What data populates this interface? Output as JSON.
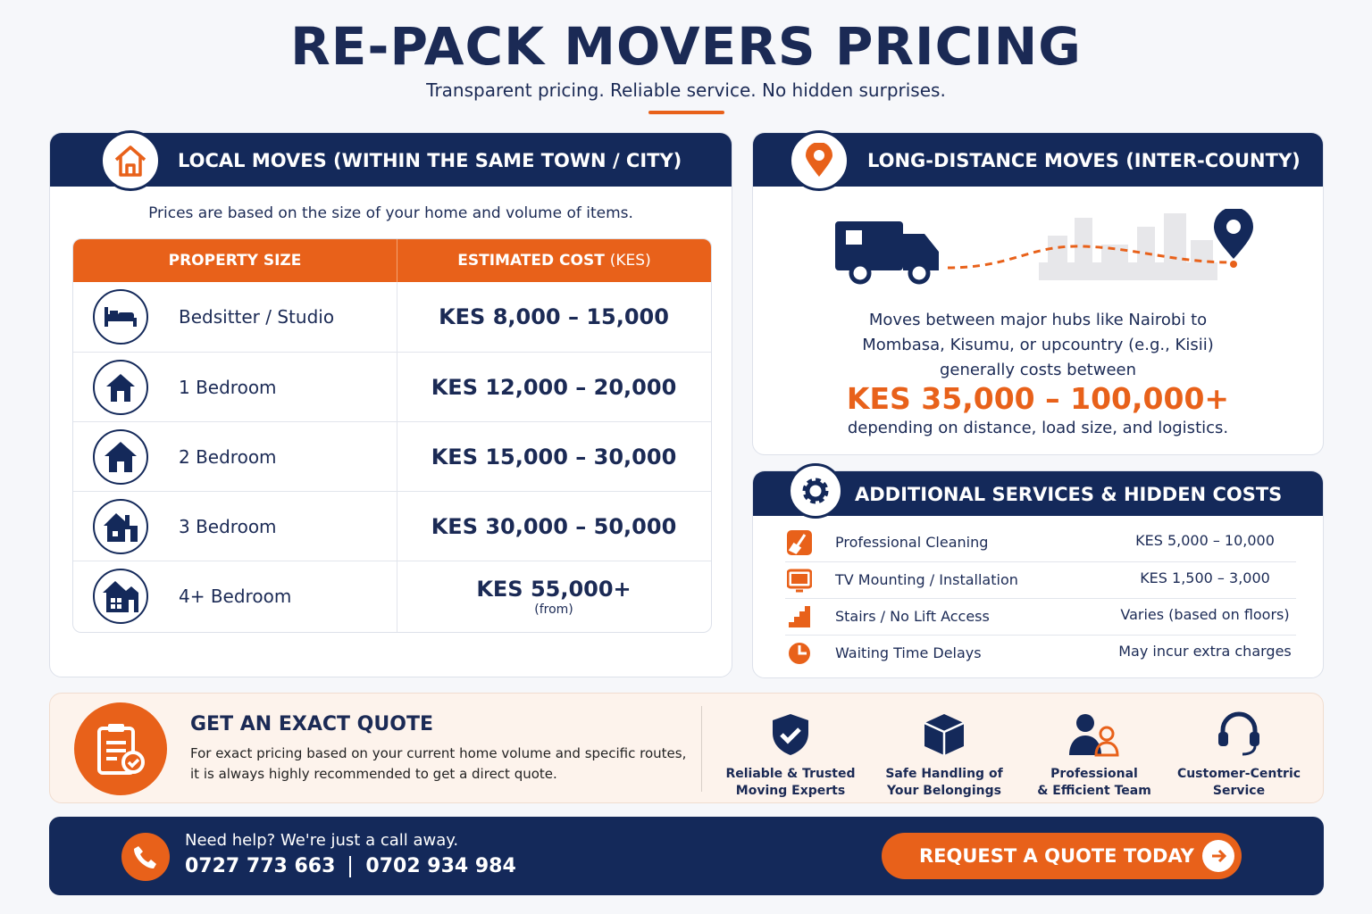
{
  "header": {
    "title": "RE-PACK MOVERS PRICING",
    "subtitle": "Transparent pricing. Reliable service. No hidden surprises."
  },
  "local": {
    "title": "LOCAL MOVES (WITHIN THE SAME TOWN / CITY)",
    "intro": "Prices are based on the size of your home and volume of items.",
    "table": {
      "header_size": "PROPERTY SIZE",
      "header_cost": "ESTIMATED COST",
      "header_unit": "(KES)",
      "rows": [
        [
          "Bedsitter / Studio",
          "KES 8,000 – 15,000"
        ],
        [
          "1 Bedroom",
          "KES 12,000 – 20,000"
        ],
        [
          "2 Bedroom",
          "KES 15,000 – 30,000"
        ],
        [
          "3 Bedroom",
          "KES 30,000 – 50,000"
        ],
        [
          "4+ Bedroom",
          "KES 55,000+"
        ]
      ],
      "last_row_note": "(from)"
    }
  },
  "long_distance": {
    "title": "LONG-DISTANCE MOVES (INTER-COUNTY)",
    "description": [
      "Moves between major hubs like Nairobi to",
      "Mombasa, Kisumu, or upcountry (e.g., Kisii)",
      "generally costs between"
    ],
    "price": "KES 35,000 – 100,000+",
    "footnote": "depending on distance, load size, and logistics."
  },
  "additional": {
    "title": "ADDITIONAL SERVICES & HIDDEN COSTS",
    "items": [
      {
        "name": "Professional Cleaning",
        "cost": "KES 5,000 – 10,000"
      },
      {
        "name": "TV Mounting / Installation",
        "cost": "KES 1,500 – 3,000"
      },
      {
        "name": "Stairs / No Lift Access",
        "cost": "Varies (based on floors)"
      },
      {
        "name": "Waiting Time Delays",
        "cost": "May incur extra charges"
      }
    ]
  },
  "quote": {
    "title": "GET AN EXACT QUOTE",
    "text": [
      "For exact pricing based on your current home volume and specific routes,",
      "it is always highly recommended to get a direct quote."
    ]
  },
  "features": [
    {
      "lines": [
        "Reliable & Trusted",
        "Moving Experts"
      ]
    },
    {
      "lines": [
        "Safe Handling of",
        "Your Belongings"
      ]
    },
    {
      "lines": [
        "Professional",
        "& Efficient Team"
      ]
    },
    {
      "lines": [
        "Customer-Centric",
        "Service"
      ]
    }
  ],
  "contact": {
    "prompt": "Need help? We're just a call away.",
    "phones": [
      "0727 773 663",
      "0702 934 984"
    ],
    "button": "REQUEST A QUOTE TODAY"
  }
}
